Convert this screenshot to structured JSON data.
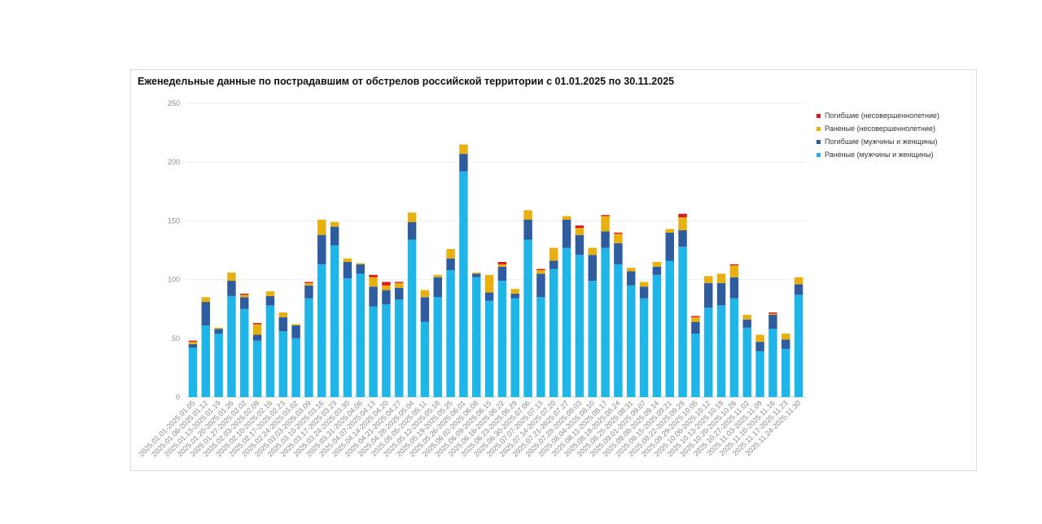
{
  "chart_data": {
    "type": "bar",
    "stacked": true,
    "title": "Еженедельные данные по пострадавшим от обстрелов российской территории с 01.01.2025 по 30.11.2025",
    "xlabel": "",
    "ylabel": "",
    "ylim": [
      0,
      250
    ],
    "yticks": [
      0,
      50,
      100,
      150,
      200,
      250
    ],
    "grid": true,
    "legend_position": "top-right",
    "categories": [
      "2025.01.01-2025.01.05",
      "2025.01.06-2025.01.12",
      "2025.01.13-2025.01.19",
      "2025.01.20-2025.01.26",
      "2025.01.27-2025.02.02",
      "2025.02.03-2025.02.09",
      "2025.02.10-2025.02.16",
      "2025.02.17-2025.02.23",
      "2025.02.24-2025.03.02",
      "2025.03.03-2025.03.09",
      "2025.03.10-2025.03.16",
      "2025.03.17-2025.03.23",
      "2025.03.24-2025.03.30",
      "2025.03.31-2025.04.06",
      "2025.04.07-2025.04.13",
      "2025.04.14-2025.04.20",
      "2025.04.21-2025.04.27",
      "2025.04.28-2025.05.04",
      "2025.05.05-2025.05.11",
      "2025.05.12-2025.05.18",
      "2025.05.19-2025.05.25",
      "2025.05.26-2025.06.01",
      "2025.06.02-2025.06.08",
      "2025.06.09-2025.06.15",
      "2025.06.16-2025.06.22",
      "2025.06.23-2025.06.29",
      "2025.06.30-2025.07.06",
      "2025.07.07-2025.07.13",
      "2025.07.14-2025.07.20",
      "2025.07.21-2025.07.27",
      "2025.07.28-2025.08.03",
      "2025.08.04-2025.08.10",
      "2025.08.11-2025.08.17",
      "2025.08.18-2025.08.24",
      "2025.08.25-2025.08.31",
      "2025.09.01-2025.09.07",
      "2025.09.08-2025.09.14",
      "2025.09.15-2025.09.21",
      "2025.09.22-2025.09.28",
      "2025.09.29-2025.10.05",
      "2025.10.06-2025.10.12",
      "2025.10.13-2025.10.19",
      "2025.10.20-2025.10.26",
      "2025.10.27-2025.11.02",
      "2025.11.03-2025.11.09",
      "2025.11.10-2025.11.16",
      "2025.11.17-2025.11.23",
      "2025.11.24-2025.11.30"
    ],
    "series": [
      {
        "name": "Раненые (мужчины и женщины)",
        "color": "#1fb5e8",
        "values": [
          42,
          61,
          54,
          86,
          75,
          48,
          78,
          56,
          50,
          84,
          113,
          129,
          101,
          105,
          77,
          79,
          83,
          134,
          64,
          85,
          108,
          192,
          102,
          82,
          99,
          84,
          134,
          85,
          109,
          127,
          121,
          99,
          127,
          113,
          95,
          84,
          104,
          116,
          128,
          54,
          76,
          78,
          84,
          59,
          39,
          58,
          41,
          87
        ]
      },
      {
        "name": "Погибшие (мужчины и женщины)",
        "color": "#2e5c9e",
        "values": [
          3,
          20,
          4,
          13,
          10,
          5,
          8,
          12,
          11,
          11,
          25,
          16,
          14,
          8,
          17,
          12,
          10,
          15,
          21,
          17,
          10,
          15,
          3,
          7,
          12,
          4,
          17,
          20,
          7,
          24,
          17,
          22,
          14,
          18,
          12,
          10,
          7,
          24,
          14,
          10,
          21,
          19,
          18,
          7,
          8,
          12,
          8,
          9
        ]
      },
      {
        "name": "Раненые (несовершеннолетние)",
        "color": "#e8b00e",
        "values": [
          2,
          4,
          1,
          7,
          2,
          9,
          4,
          4,
          1,
          2,
          13,
          4,
          3,
          1,
          8,
          4,
          4,
          8,
          6,
          2,
          8,
          8,
          1,
          15,
          2,
          4,
          8,
          3,
          11,
          3,
          6,
          6,
          13,
          8,
          3,
          4,
          4,
          3,
          11,
          4,
          6,
          8,
          10,
          4,
          6,
          1,
          5,
          6
        ]
      },
      {
        "name": "Погибшие (несовершеннолетние)",
        "color": "#d91a1a",
        "values": [
          1,
          0,
          0,
          0,
          1,
          1,
          0,
          0,
          0,
          1,
          0,
          0,
          0,
          0,
          2,
          3,
          1,
          0,
          0,
          0,
          0,
          0,
          0,
          0,
          2,
          0,
          0,
          1,
          0,
          0,
          2,
          0,
          1,
          1,
          0,
          0,
          0,
          0,
          3,
          1,
          0,
          0,
          1,
          0,
          0,
          1,
          0,
          0
        ]
      }
    ],
    "legend_order": [
      "Погибшие (несовершеннолетние)",
      "Раненые (несовершеннолетние)",
      "Погибшие (мужчины и женщины)",
      "Раненые (мужчины и женщины)"
    ]
  }
}
